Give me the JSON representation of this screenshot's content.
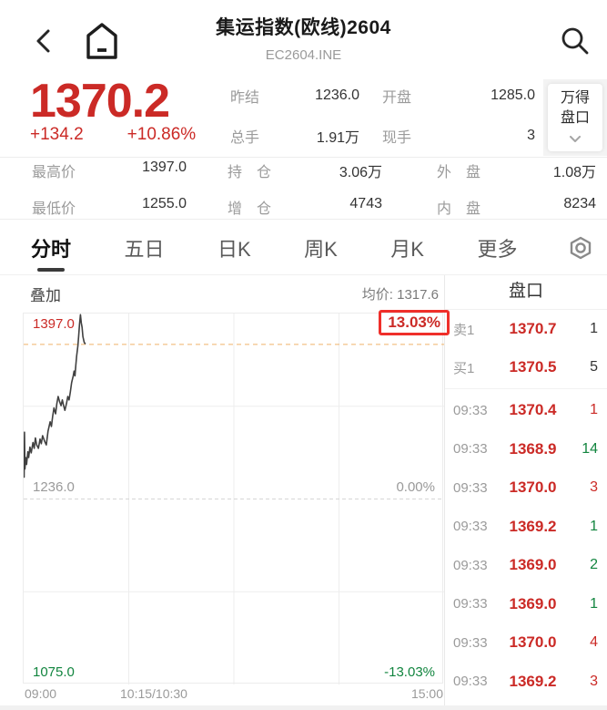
{
  "colors": {
    "up_red": "#cb2a26",
    "down_green": "#12853f",
    "highlight_box_red": "#ef2f2a",
    "current_price_dash": "#f0b26a"
  },
  "header": {
    "title": "集运指数(欧线)2604",
    "code": "EC2604.INE"
  },
  "quote": {
    "last": "1370.2",
    "change": "+134.2",
    "change_pct": "+10.86%",
    "stats": [
      {
        "label": "昨结",
        "value": "1236.0"
      },
      {
        "label": "开盘",
        "value": "1285.0"
      },
      {
        "label": "总手",
        "value": "1.91万"
      },
      {
        "label": "现手",
        "value": "3"
      }
    ],
    "badge": {
      "line1": "万得",
      "line2": "盘口"
    }
  },
  "stats2": [
    {
      "label": "最高价",
      "value": "1397.0"
    },
    {
      "label": "持　仓",
      "value": "3.06万"
    },
    {
      "label": "外　盘",
      "value": "1.08万"
    },
    {
      "label": "最低价",
      "value": "1255.0"
    },
    {
      "label": "增　仓",
      "value": "4743"
    },
    {
      "label": "内　盘",
      "value": "8234"
    }
  ],
  "tabs": {
    "items": [
      "分时",
      "五日",
      "日K",
      "周K",
      "月K",
      "更多"
    ],
    "active": "分时"
  },
  "chart_header": {
    "overlay": "叠加",
    "avg": "均价: 1317.6"
  },
  "chart_data": {
    "type": "line",
    "title": "分时 intraday price line",
    "x_ticks": [
      "09:00",
      "10:15/10:30",
      "15:00"
    ],
    "ylim": [
      1075,
      1397
    ],
    "y_labels": {
      "top": "1397.0",
      "top_pct": "13.03%",
      "mid": "1236.0",
      "mid_pct": "0.00%",
      "bottom": "1075.0",
      "bottom_pct": "-13.03%"
    },
    "prev_close": 1236.0,
    "current_price": 1370.2,
    "avg_price": 1317.6,
    "grid": true,
    "points": [
      [
        0.0,
        1285
      ],
      [
        0.001,
        1255
      ],
      [
        0.002,
        1294
      ],
      [
        0.003,
        1262
      ],
      [
        0.005,
        1272
      ],
      [
        0.007,
        1266
      ],
      [
        0.01,
        1277
      ],
      [
        0.012,
        1272
      ],
      [
        0.015,
        1281
      ],
      [
        0.018,
        1276
      ],
      [
        0.022,
        1285
      ],
      [
        0.025,
        1280
      ],
      [
        0.028,
        1289
      ],
      [
        0.031,
        1283
      ],
      [
        0.035,
        1280
      ],
      [
        0.039,
        1288
      ],
      [
        0.042,
        1284
      ],
      [
        0.045,
        1291
      ],
      [
        0.05,
        1286
      ],
      [
        0.054,
        1283
      ],
      [
        0.058,
        1295
      ],
      [
        0.063,
        1303
      ],
      [
        0.066,
        1299
      ],
      [
        0.069,
        1308
      ],
      [
        0.072,
        1315
      ],
      [
        0.076,
        1310
      ],
      [
        0.079,
        1319
      ],
      [
        0.082,
        1325
      ],
      [
        0.085,
        1321
      ],
      [
        0.089,
        1317
      ],
      [
        0.092,
        1322
      ],
      [
        0.095,
        1317
      ],
      [
        0.098,
        1313
      ],
      [
        0.102,
        1319
      ],
      [
        0.105,
        1325
      ],
      [
        0.108,
        1322
      ],
      [
        0.111,
        1329
      ],
      [
        0.114,
        1337
      ],
      [
        0.118,
        1343
      ],
      [
        0.12,
        1347
      ],
      [
        0.122,
        1343
      ],
      [
        0.124,
        1352
      ],
      [
        0.126,
        1360
      ],
      [
        0.129,
        1369
      ],
      [
        0.131,
        1378
      ],
      [
        0.133,
        1388
      ],
      [
        0.135,
        1396
      ],
      [
        0.137,
        1389
      ],
      [
        0.139,
        1385
      ],
      [
        0.141,
        1377
      ],
      [
        0.144,
        1372
      ],
      [
        0.147,
        1370.5
      ]
    ]
  },
  "panel": {
    "title": "盘口",
    "quotes": [
      {
        "label": "卖1",
        "price": "1370.7",
        "qty": "1",
        "dir": "neutral"
      },
      {
        "label": "买1",
        "price": "1370.5",
        "qty": "5",
        "dir": "neutral"
      }
    ],
    "trades": [
      {
        "time": "09:33",
        "price": "1370.4",
        "qty": "1",
        "dir": "up"
      },
      {
        "time": "09:33",
        "price": "1368.9",
        "qty": "14",
        "dir": "down"
      },
      {
        "time": "09:33",
        "price": "1370.0",
        "qty": "3",
        "dir": "up"
      },
      {
        "time": "09:33",
        "price": "1369.2",
        "qty": "1",
        "dir": "down"
      },
      {
        "time": "09:33",
        "price": "1369.0",
        "qty": "2",
        "dir": "down"
      },
      {
        "time": "09:33",
        "price": "1369.0",
        "qty": "1",
        "dir": "down"
      },
      {
        "time": "09:33",
        "price": "1370.0",
        "qty": "4",
        "dir": "up"
      },
      {
        "time": "09:33",
        "price": "1369.2",
        "qty": "3",
        "dir": "up"
      }
    ]
  }
}
